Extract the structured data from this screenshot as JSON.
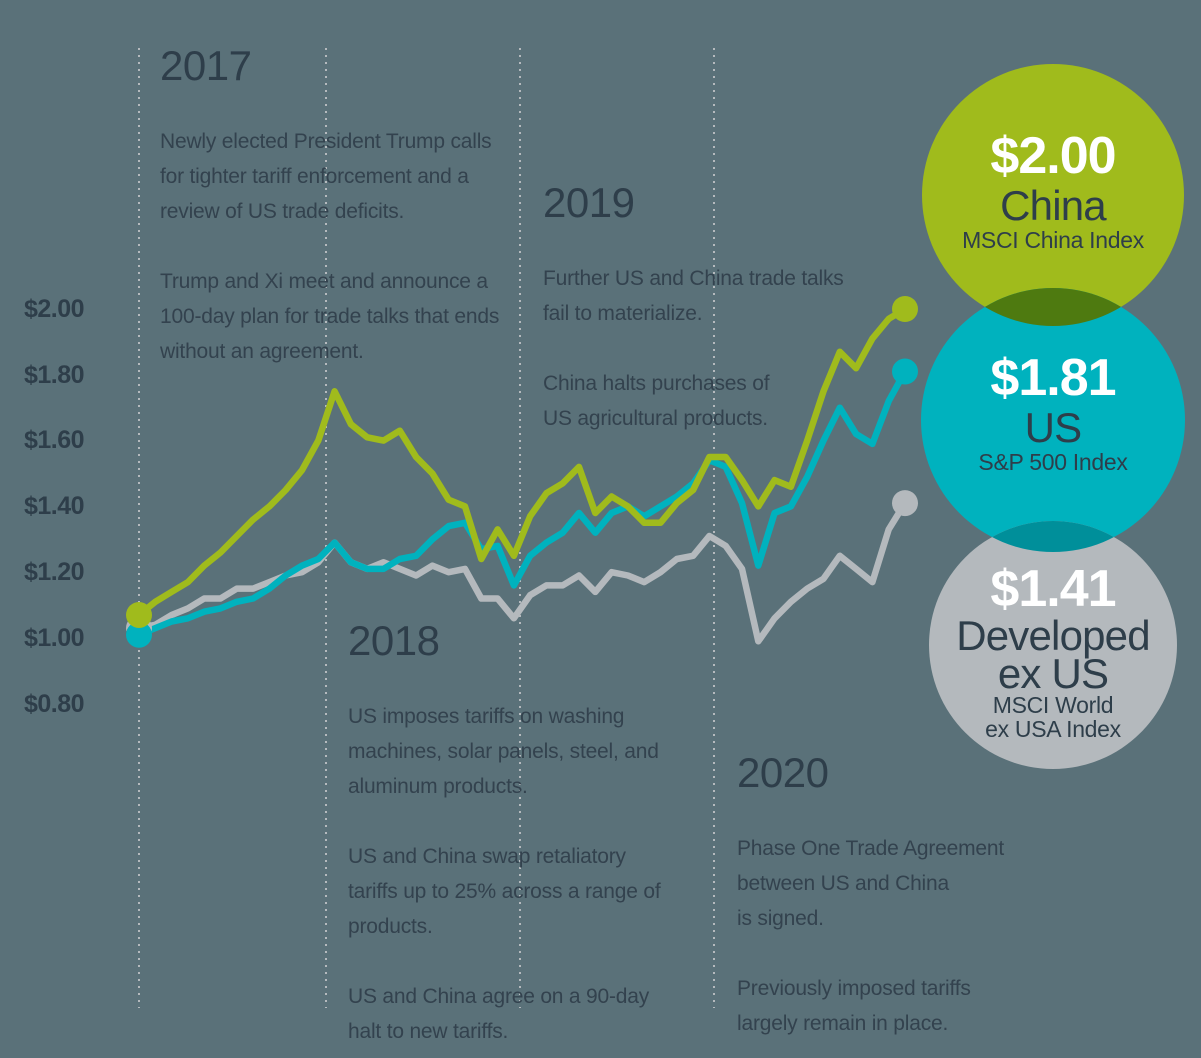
{
  "colors": {
    "background": "#5A7179",
    "text_dark": "#2E3E4A",
    "text_body": "#33424E",
    "gridline": "#B5BABE",
    "china": "#A0BB1C",
    "us": "#00B2BE",
    "dev_ex_us": "#B4B9BD",
    "china_us_overlap": "#4E7A10",
    "us_dev_overlap": "#008F9A",
    "value_text": "#FFFFFF"
  },
  "annotations": {
    "y2017": {
      "year": "2017",
      "p1": [
        "Newly elected President Trump calls",
        "for tighter tariff enforcement and a",
        "review of US trade deficits."
      ],
      "p2": [
        "Trump and Xi meet and announce a",
        "100-day plan for trade talks that ends",
        "without an agreement."
      ]
    },
    "y2018": {
      "year": "2018",
      "p1": [
        "US imposes tariffs on washing",
        "machines, solar panels, steel, and",
        "aluminum products."
      ],
      "p2": [
        "US and China swap retaliatory",
        "tariffs up to 25% across a range of",
        "products."
      ],
      "p3": [
        "US and China agree on a 90-day",
        "halt to new tariffs."
      ]
    },
    "y2019": {
      "year": "2019",
      "p1": [
        "Further US and China trade talks",
        "fail to materialize."
      ],
      "p2": [
        "China halts purchases of",
        "US agricultural products."
      ]
    },
    "y2020": {
      "year": "2020",
      "p1": [
        "Phase One Trade Agreement",
        "between US and China",
        "is signed."
      ],
      "p2": [
        "Previously imposed tariffs",
        "largely remain in place."
      ]
    }
  },
  "badges": [
    {
      "value": "$2.00",
      "name_lines": [
        "China"
      ],
      "index_lines": [
        "MSCI China Index"
      ],
      "color": "#A0BB1C"
    },
    {
      "value": "$1.81",
      "name_lines": [
        "US"
      ],
      "index_lines": [
        "S&P 500 Index"
      ],
      "color": "#00B2BE"
    },
    {
      "value": "$1.41",
      "name_lines": [
        "Developed",
        "ex US"
      ],
      "index_lines": [
        "MSCI World",
        "ex USA Index"
      ],
      "color": "#B4B9BD"
    }
  ],
  "chart_data": {
    "type": "line",
    "title": "",
    "x_unit": "month",
    "x_start": "Jan 2017",
    "x_end": "Dec 2020",
    "x_gridline_labels": [
      "2017",
      "2018",
      "2019",
      "2020"
    ],
    "y_axis_ticks": [
      "$2.00",
      "$1.80",
      "$1.60",
      "$1.40",
      "$1.20",
      "$1.00",
      "$0.80"
    ],
    "ylim": [
      0.8,
      2.05
    ],
    "grid": "vertical dotted year lines only",
    "legend_position": "right badges",
    "series": [
      {
        "id": "dev-ex-us",
        "name": "Developed ex US",
        "index": "MSCI World ex USA Index",
        "color": "#B4B9BD",
        "end_value": "$1.41",
        "values": [
          1.03,
          1.04,
          1.07,
          1.09,
          1.12,
          1.12,
          1.15,
          1.15,
          1.17,
          1.19,
          1.2,
          1.23,
          1.29,
          1.23,
          1.21,
          1.23,
          1.21,
          1.19,
          1.22,
          1.2,
          1.21,
          1.12,
          1.12,
          1.06,
          1.13,
          1.16,
          1.16,
          1.19,
          1.14,
          1.2,
          1.19,
          1.17,
          1.2,
          1.24,
          1.25,
          1.31,
          1.28,
          1.21,
          0.99,
          1.06,
          1.11,
          1.15,
          1.18,
          1.25,
          1.21,
          1.17,
          1.33,
          1.41
        ]
      },
      {
        "id": "us",
        "name": "US",
        "index": "S&P 500 Index",
        "color": "#00B2BE",
        "end_value": "$1.81",
        "values": [
          1.01,
          1.03,
          1.05,
          1.06,
          1.08,
          1.09,
          1.11,
          1.12,
          1.15,
          1.19,
          1.22,
          1.24,
          1.29,
          1.23,
          1.21,
          1.21,
          1.24,
          1.25,
          1.3,
          1.34,
          1.35,
          1.27,
          1.28,
          1.16,
          1.25,
          1.29,
          1.32,
          1.38,
          1.32,
          1.38,
          1.4,
          1.37,
          1.4,
          1.43,
          1.47,
          1.54,
          1.52,
          1.41,
          1.22,
          1.38,
          1.4,
          1.49,
          1.6,
          1.7,
          1.62,
          1.59,
          1.72,
          1.81
        ]
      },
      {
        "id": "china",
        "name": "China",
        "index": "MSCI China Index",
        "color": "#A0BB1C",
        "end_value": "$2.00",
        "values": [
          1.07,
          1.11,
          1.14,
          1.17,
          1.22,
          1.26,
          1.31,
          1.36,
          1.4,
          1.45,
          1.51,
          1.6,
          1.75,
          1.65,
          1.61,
          1.6,
          1.63,
          1.55,
          1.5,
          1.42,
          1.4,
          1.24,
          1.33,
          1.25,
          1.37,
          1.44,
          1.47,
          1.52,
          1.38,
          1.43,
          1.4,
          1.35,
          1.35,
          1.41,
          1.45,
          1.55,
          1.55,
          1.48,
          1.4,
          1.48,
          1.46,
          1.6,
          1.75,
          1.87,
          1.82,
          1.91,
          1.97,
          2.0
        ]
      }
    ]
  }
}
